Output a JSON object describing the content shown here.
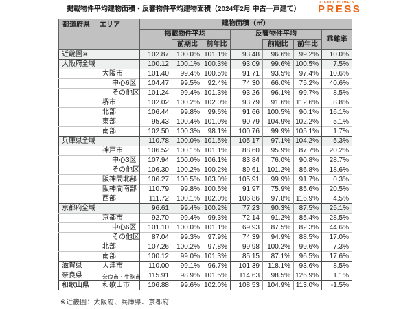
{
  "page": {
    "title": "掲載物件平均建物面積・反響物件平均建物面積（2024年2月 中古一戸建て）",
    "footnote": "※近畿圏：大阪府、兵庫県、京都府",
    "colors": {
      "logo_orange": "#e96413",
      "header_gray": "#c1c1c1",
      "shaded_row": "#eef0ef"
    }
  },
  "logo": {
    "top": "LIFULL HOME'S",
    "press": "PRESS"
  },
  "table": {
    "header": {
      "pref_col": "都道府県",
      "area_col": "エリア",
      "group": "建物面積（㎡）",
      "listed": "掲載物件平均",
      "inquiry": "反響物件平均",
      "divergence": "乖離率",
      "mom": "前期比",
      "yoy": "前年比"
    },
    "rows": [
      {
        "pref": "近畿圏※",
        "area": "",
        "indent": 0,
        "section": true,
        "shaded": true,
        "values": [
          "102.87",
          "100.0%",
          "101.1%",
          "93.48",
          "96.6%",
          "99.2%",
          "10.0%"
        ]
      },
      {
        "pref": "大阪府",
        "area": "全域",
        "indent": 0,
        "section": true,
        "shaded": true,
        "values": [
          "100.12",
          "100.1%",
          "100.3%",
          "93.09",
          "99.6%",
          "100.5%",
          "7.5%"
        ]
      },
      {
        "pref": "",
        "area": "大阪市",
        "indent": 1,
        "section": false,
        "shaded": false,
        "values": [
          "101.40",
          "99.4%",
          "100.5%",
          "91.71",
          "93.5%",
          "97.4%",
          "10.6%"
        ]
      },
      {
        "pref": "",
        "area": "中心6区",
        "indent": 2,
        "section": false,
        "shaded": false,
        "values": [
          "104.47",
          "99.5%",
          "92.4%",
          "74.30",
          "66.0%",
          "75.2%",
          "40.6%"
        ]
      },
      {
        "pref": "",
        "area": "その他区",
        "indent": 2,
        "section": false,
        "shaded": false,
        "values": [
          "101.24",
          "99.4%",
          "101.3%",
          "93.26",
          "96.1%",
          "99.7%",
          "8.5%"
        ]
      },
      {
        "pref": "",
        "area": "堺市",
        "indent": 1,
        "section": false,
        "shaded": false,
        "values": [
          "102.02",
          "100.2%",
          "102.0%",
          "93.79",
          "91.6%",
          "112.6%",
          "8.8%"
        ]
      },
      {
        "pref": "",
        "area": "北部",
        "indent": 1,
        "section": false,
        "shaded": false,
        "values": [
          "106.44",
          "99.8%",
          "99.6%",
          "91.66",
          "100.5%",
          "90.1%",
          "16.1%"
        ]
      },
      {
        "pref": "",
        "area": "東部",
        "indent": 1,
        "section": false,
        "shaded": false,
        "values": [
          "95.43",
          "100.4%",
          "101.0%",
          "90.79",
          "104.9%",
          "102.2%",
          "5.1%"
        ]
      },
      {
        "pref": "",
        "area": "南部",
        "indent": 1,
        "section": false,
        "shaded": false,
        "values": [
          "102.50",
          "100.3%",
          "98.1%",
          "100.76",
          "99.9%",
          "105.1%",
          "1.7%"
        ]
      },
      {
        "pref": "兵庫県",
        "area": "全域",
        "indent": 0,
        "section": true,
        "shaded": true,
        "values": [
          "110.78",
          "100.0%",
          "101.5%",
          "105.17",
          "97.1%",
          "104.2%",
          "5.3%"
        ]
      },
      {
        "pref": "",
        "area": "神戸市",
        "indent": 1,
        "section": false,
        "shaded": false,
        "values": [
          "106.52",
          "100.1%",
          "101.1%",
          "88.60",
          "95.9%",
          "87.7%",
          "20.2%"
        ]
      },
      {
        "pref": "",
        "area": "中心3区",
        "indent": 2,
        "section": false,
        "shaded": false,
        "values": [
          "107.94",
          "100.0%",
          "106.1%",
          "83.84",
          "76.0%",
          "90.8%",
          "28.7%"
        ]
      },
      {
        "pref": "",
        "area": "その他区",
        "indent": 2,
        "section": false,
        "shaded": false,
        "values": [
          "106.30",
          "100.2%",
          "100.2%",
          "89.61",
          "101.2%",
          "86.8%",
          "18.6%"
        ]
      },
      {
        "pref": "",
        "area": "阪神間北部",
        "indent": 1,
        "section": false,
        "shaded": false,
        "values": [
          "106.27",
          "100.5%",
          "103.0%",
          "105.91",
          "99.9%",
          "91.7%",
          "0.3%"
        ]
      },
      {
        "pref": "",
        "area": "阪神間南部",
        "indent": 1,
        "section": false,
        "shaded": false,
        "values": [
          "110.79",
          "99.8%",
          "100.5%",
          "91.97",
          "75.9%",
          "85.6%",
          "20.5%"
        ]
      },
      {
        "pref": "",
        "area": "西部",
        "indent": 1,
        "section": false,
        "shaded": false,
        "values": [
          "111.72",
          "100.1%",
          "102.0%",
          "106.86",
          "97.8%",
          "116.9%",
          "4.5%"
        ]
      },
      {
        "pref": "京都府",
        "area": "全域",
        "indent": 0,
        "section": true,
        "shaded": true,
        "values": [
          "96.61",
          "99.4%",
          "100.2%",
          "77.23",
          "90.3%",
          "87.5%",
          "25.1%"
        ]
      },
      {
        "pref": "",
        "area": "京都市",
        "indent": 1,
        "section": false,
        "shaded": false,
        "values": [
          "92.70",
          "99.4%",
          "99.3%",
          "72.14",
          "91.2%",
          "85.4%",
          "28.5%"
        ]
      },
      {
        "pref": "",
        "area": "中心6区",
        "indent": 2,
        "section": false,
        "shaded": false,
        "values": [
          "101.10",
          "100.0%",
          "101.1%",
          "69.93",
          "87.5%",
          "82.3%",
          "44.6%"
        ]
      },
      {
        "pref": "",
        "area": "その他区",
        "indent": 2,
        "section": false,
        "shaded": false,
        "values": [
          "87.04",
          "99.3%",
          "97.9%",
          "74.39",
          "94.9%",
          "88.5%",
          "17.0%"
        ]
      },
      {
        "pref": "",
        "area": "北部",
        "indent": 1,
        "section": false,
        "shaded": false,
        "values": [
          "107.26",
          "100.2%",
          "97.8%",
          "99.98",
          "100.2%",
          "99.6%",
          "7.3%"
        ]
      },
      {
        "pref": "",
        "area": "南部",
        "indent": 1,
        "section": false,
        "shaded": false,
        "values": [
          "100.12",
          "99.0%",
          "101.3%",
          "85.15",
          "87.1%",
          "96.5%",
          "17.6%"
        ]
      },
      {
        "pref": "滋賀県",
        "area": "大津市",
        "indent": 1,
        "section": true,
        "shaded": false,
        "values": [
          "110.00",
          "99.1%",
          "96.7%",
          "101.39",
          "118.1%",
          "93.6%",
          "8.5%"
        ]
      },
      {
        "pref": "奈良県",
        "area": "奈良市・生駒市",
        "indent": 1,
        "section": true,
        "shaded": false,
        "values": [
          "115.91",
          "98.9%",
          "101.5%",
          "114.63",
          "98.5%",
          "126.9%",
          "1.1%"
        ]
      },
      {
        "pref": "和歌山県",
        "area": "和歌山市",
        "indent": 1,
        "section": true,
        "shaded": false,
        "values": [
          "106.88",
          "99.6%",
          "102.0%",
          "108.53",
          "104.9%",
          "113.0%",
          "-1.5%"
        ]
      }
    ]
  }
}
